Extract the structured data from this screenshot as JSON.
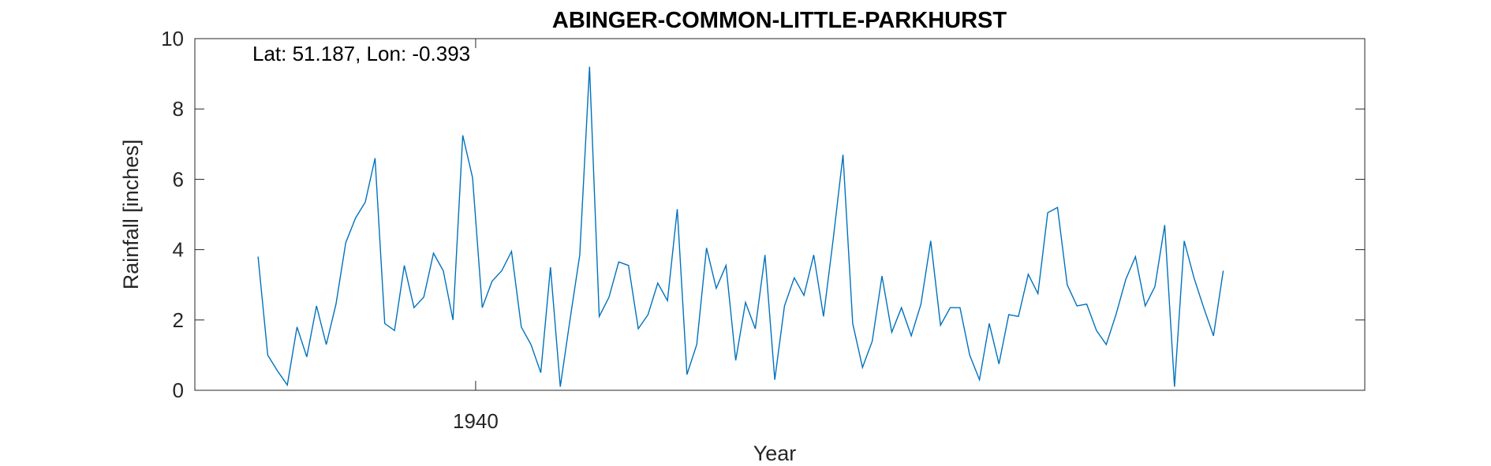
{
  "chart_data": {
    "type": "line",
    "title": "ABINGER-COMMON-LITTLE-PARKHURST",
    "annotation": "Lat: 51.187, Lon: -0.393",
    "xlabel": "Year",
    "ylabel": "Rainfall [inches]",
    "xlim": [
      1932.8,
      1962.8
    ],
    "ylim": [
      0,
      10
    ],
    "x_ticks": [
      1940
    ],
    "x_tick_labels": [
      "1940"
    ],
    "y_ticks": [
      0,
      2,
      4,
      6,
      8,
      10
    ],
    "y_tick_labels": [
      "0",
      "2",
      "4",
      "6",
      "8",
      "10"
    ],
    "grid": false,
    "line_color": "#0072BD",
    "series": [
      {
        "x": [
          1934.42,
          1934.67,
          1934.92,
          1935.17,
          1935.42,
          1935.67,
          1935.92,
          1936.17,
          1936.42,
          1936.67,
          1936.92,
          1937.17,
          1937.42,
          1937.67,
          1937.92,
          1938.17,
          1938.42,
          1938.67,
          1938.92,
          1939.17,
          1939.42,
          1939.67,
          1939.92,
          1940.17,
          1940.42,
          1940.67,
          1940.92,
          1941.17,
          1941.42,
          1941.67,
          1941.92,
          1942.17,
          1942.42,
          1942.67,
          1942.92,
          1943.17,
          1943.42,
          1943.67,
          1943.92,
          1944.17,
          1944.42,
          1944.67,
          1944.92,
          1945.17,
          1945.42,
          1945.67,
          1945.92,
          1946.17,
          1946.42,
          1946.67,
          1946.92,
          1947.17,
          1947.42,
          1947.67,
          1947.92,
          1948.17,
          1948.42,
          1948.67,
          1948.92,
          1949.17,
          1949.42,
          1949.67,
          1949.92,
          1950.17,
          1950.42,
          1950.67,
          1950.92,
          1951.17,
          1951.42,
          1951.67,
          1951.92,
          1952.17,
          1952.42,
          1952.67,
          1952.92,
          1953.17,
          1953.42,
          1953.67,
          1953.92,
          1954.17,
          1954.42,
          1954.67,
          1954.92,
          1955.17,
          1955.42,
          1955.67,
          1955.92,
          1956.17,
          1956.42,
          1956.67,
          1956.92,
          1957.17,
          1957.42,
          1957.67,
          1957.92,
          1958.17,
          1958.42,
          1958.67,
          1958.92,
          1959.17
        ],
        "values": [
          3.8,
          1.0,
          0.55,
          0.15,
          1.8,
          0.95,
          2.4,
          1.3,
          2.45,
          4.2,
          4.9,
          5.35,
          6.6,
          1.9,
          1.7,
          3.55,
          2.35,
          2.65,
          3.9,
          3.4,
          2.0,
          7.25,
          6.05,
          2.35,
          3.1,
          3.4,
          3.95,
          1.8,
          1.3,
          0.5,
          3.5,
          0.1,
          2.0,
          3.85,
          9.2,
          2.1,
          2.65,
          3.65,
          3.55,
          1.75,
          2.15,
          3.05,
          2.55,
          5.15,
          0.45,
          1.3,
          4.05,
          2.9,
          3.55,
          0.85,
          2.5,
          1.75,
          3.85,
          0.3,
          2.4,
          3.2,
          2.7,
          3.85,
          2.1,
          4.3,
          6.7,
          1.9,
          0.65,
          1.4,
          3.25,
          1.65,
          2.35,
          1.55,
          2.45,
          4.25,
          1.85,
          2.35,
          2.35,
          1.0,
          0.3,
          1.9,
          0.75,
          2.15,
          2.1,
          3.3,
          2.75,
          5.05,
          5.2,
          3.0,
          2.4,
          2.45,
          1.7,
          1.3,
          2.15,
          3.15,
          3.8,
          2.4,
          2.95,
          4.7,
          0.1,
          4.25,
          3.2,
          2.35,
          1.55,
          3.4
        ]
      }
    ]
  }
}
